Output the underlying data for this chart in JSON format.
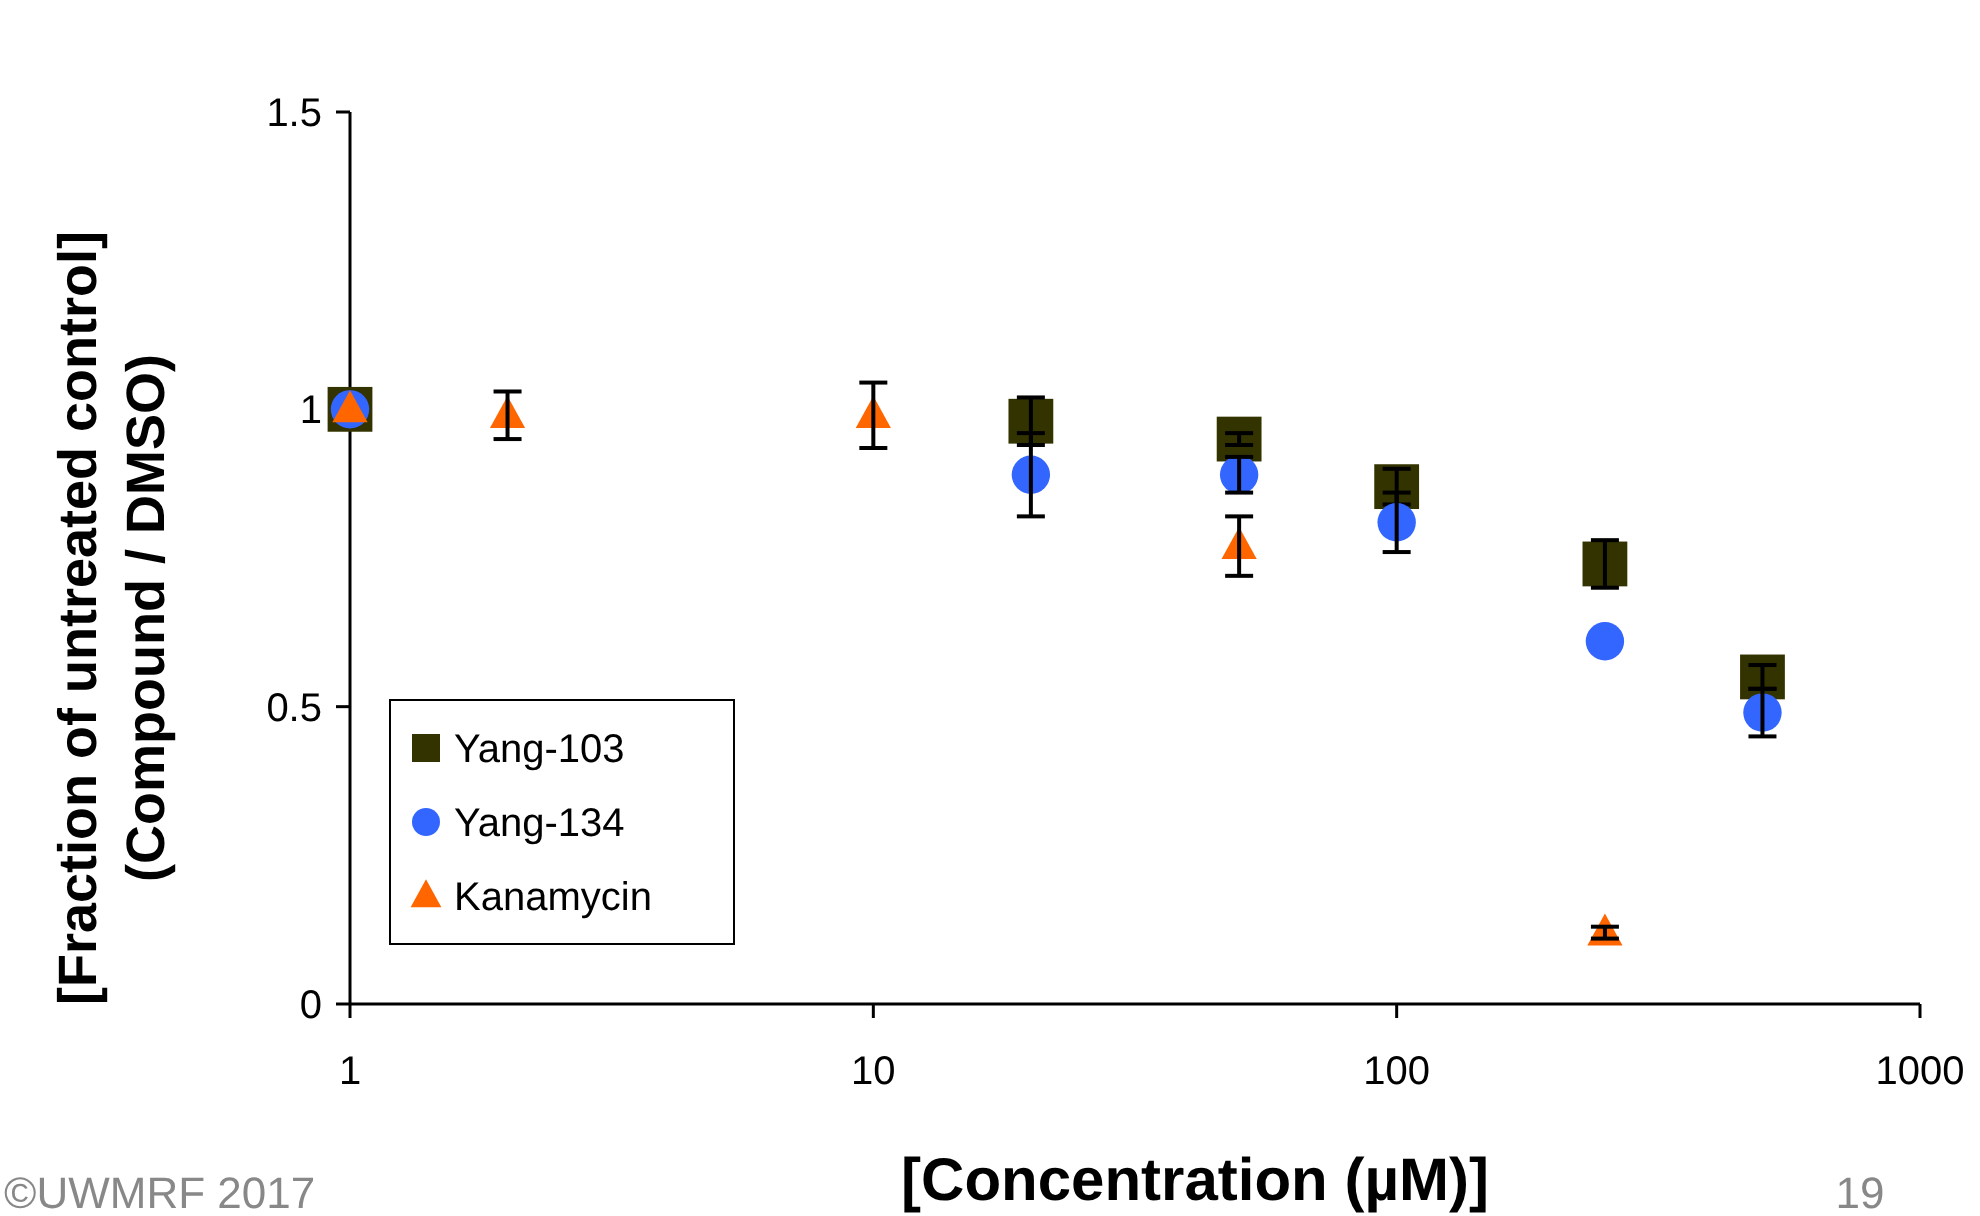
{
  "chart_data": {
    "type": "scatter",
    "xlabel": "[Concentration (µM)]",
    "ylabel": "[Fraction of untreated control]\n(Compound / DMSO)",
    "log": "x",
    "xlim": [
      1,
      1000
    ],
    "xticks": [
      1,
      10,
      100,
      1000
    ],
    "ylim": [
      0,
      1.5
    ],
    "yticks": [
      0,
      0.5,
      1,
      1.5
    ],
    "grid": false,
    "legend": "bottom left",
    "series": [
      {
        "name": "Yang-103",
        "color": "#333300",
        "marker": "square",
        "x": [
          1,
          20,
          50,
          100,
          250,
          500
        ],
        "values": [
          1.0,
          0.98,
          0.95,
          0.87,
          0.74,
          0.55
        ],
        "errors": [
          null,
          0.04,
          0.01,
          0.03,
          0.04,
          0.02
        ]
      },
      {
        "name": "Yang-134",
        "color": "#3366ff",
        "marker": "circle",
        "x": [
          1,
          20,
          50,
          100,
          250,
          500
        ],
        "values": [
          1.0,
          0.89,
          0.89,
          0.81,
          0.61,
          0.49
        ],
        "errors": [
          null,
          0.07,
          0.03,
          0.05,
          null,
          0.04
        ]
      },
      {
        "name": "Kanamycin",
        "color": "#ff6600",
        "marker": "triangle",
        "x": [
          1,
          2,
          10,
          50,
          250
        ],
        "values": [
          1.0,
          0.99,
          0.99,
          0.77,
          0.12
        ],
        "errors": [
          null,
          0.04,
          0.055,
          0.05,
          0.01
        ]
      }
    ],
    "annotations": [
      "©UWMRF 2017",
      "19"
    ]
  }
}
